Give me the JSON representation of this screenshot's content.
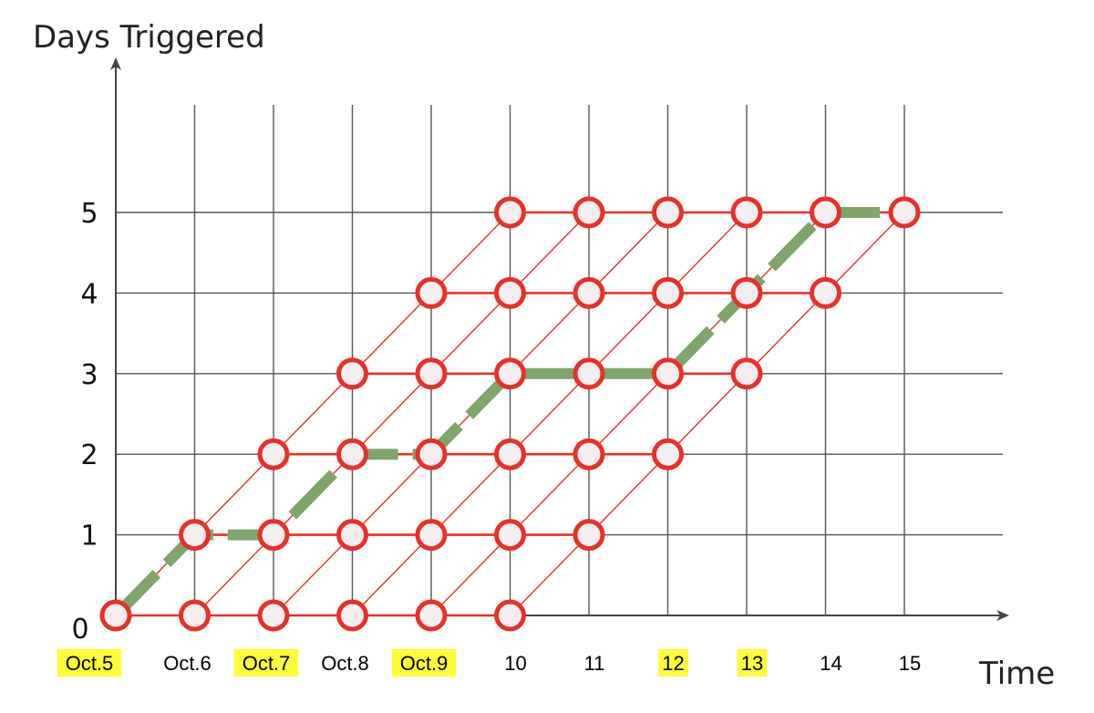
{
  "chart_data": {
    "type": "lattice-diagram",
    "ylabel": "Days Triggered",
    "xlabel": "Time",
    "y_ticks": [
      "0",
      "1",
      "2",
      "3",
      "4",
      "5"
    ],
    "x_ticks": [
      {
        "label": "Oct.5",
        "highlight": true
      },
      {
        "label": "Oct.6",
        "highlight": false
      },
      {
        "label": "Oct.7",
        "highlight": true
      },
      {
        "label": "Oct.8",
        "highlight": false
      },
      {
        "label": "Oct.9",
        "highlight": true
      },
      {
        "label": "10",
        "highlight": false
      },
      {
        "label": "11",
        "highlight": false
      },
      {
        "label": "12",
        "highlight": true
      },
      {
        "label": "13",
        "highlight": true
      },
      {
        "label": "14",
        "highlight": false
      },
      {
        "label": "15",
        "highlight": false
      }
    ],
    "nodes_per_row": [
      {
        "days": 0,
        "x": [
          0,
          1,
          2,
          3,
          4,
          5
        ]
      },
      {
        "days": 1,
        "x": [
          1,
          2,
          3,
          4,
          5,
          6
        ]
      },
      {
        "days": 2,
        "x": [
          2,
          3,
          4,
          5,
          6,
          7
        ]
      },
      {
        "days": 3,
        "x": [
          3,
          4,
          5,
          6,
          7,
          8
        ]
      },
      {
        "days": 4,
        "x": [
          4,
          5,
          6,
          7,
          8,
          9
        ]
      },
      {
        "days": 5,
        "x": [
          5,
          6,
          7,
          8,
          9,
          10
        ]
      }
    ],
    "highlighted_path": [
      [
        0,
        0
      ],
      [
        1,
        1
      ],
      [
        2,
        1
      ],
      [
        3,
        2
      ],
      [
        4,
        2
      ],
      [
        5,
        3
      ],
      [
        6,
        3
      ],
      [
        7,
        3
      ],
      [
        8,
        4
      ],
      [
        9,
        5
      ],
      [
        10,
        5
      ]
    ],
    "colors": {
      "grid": "#555555",
      "lattice": "#e8302a",
      "node_fill": "#f3eef0",
      "path": "#7fa56a",
      "highlight": "#fdfc3a",
      "axis": "#444444"
    }
  }
}
